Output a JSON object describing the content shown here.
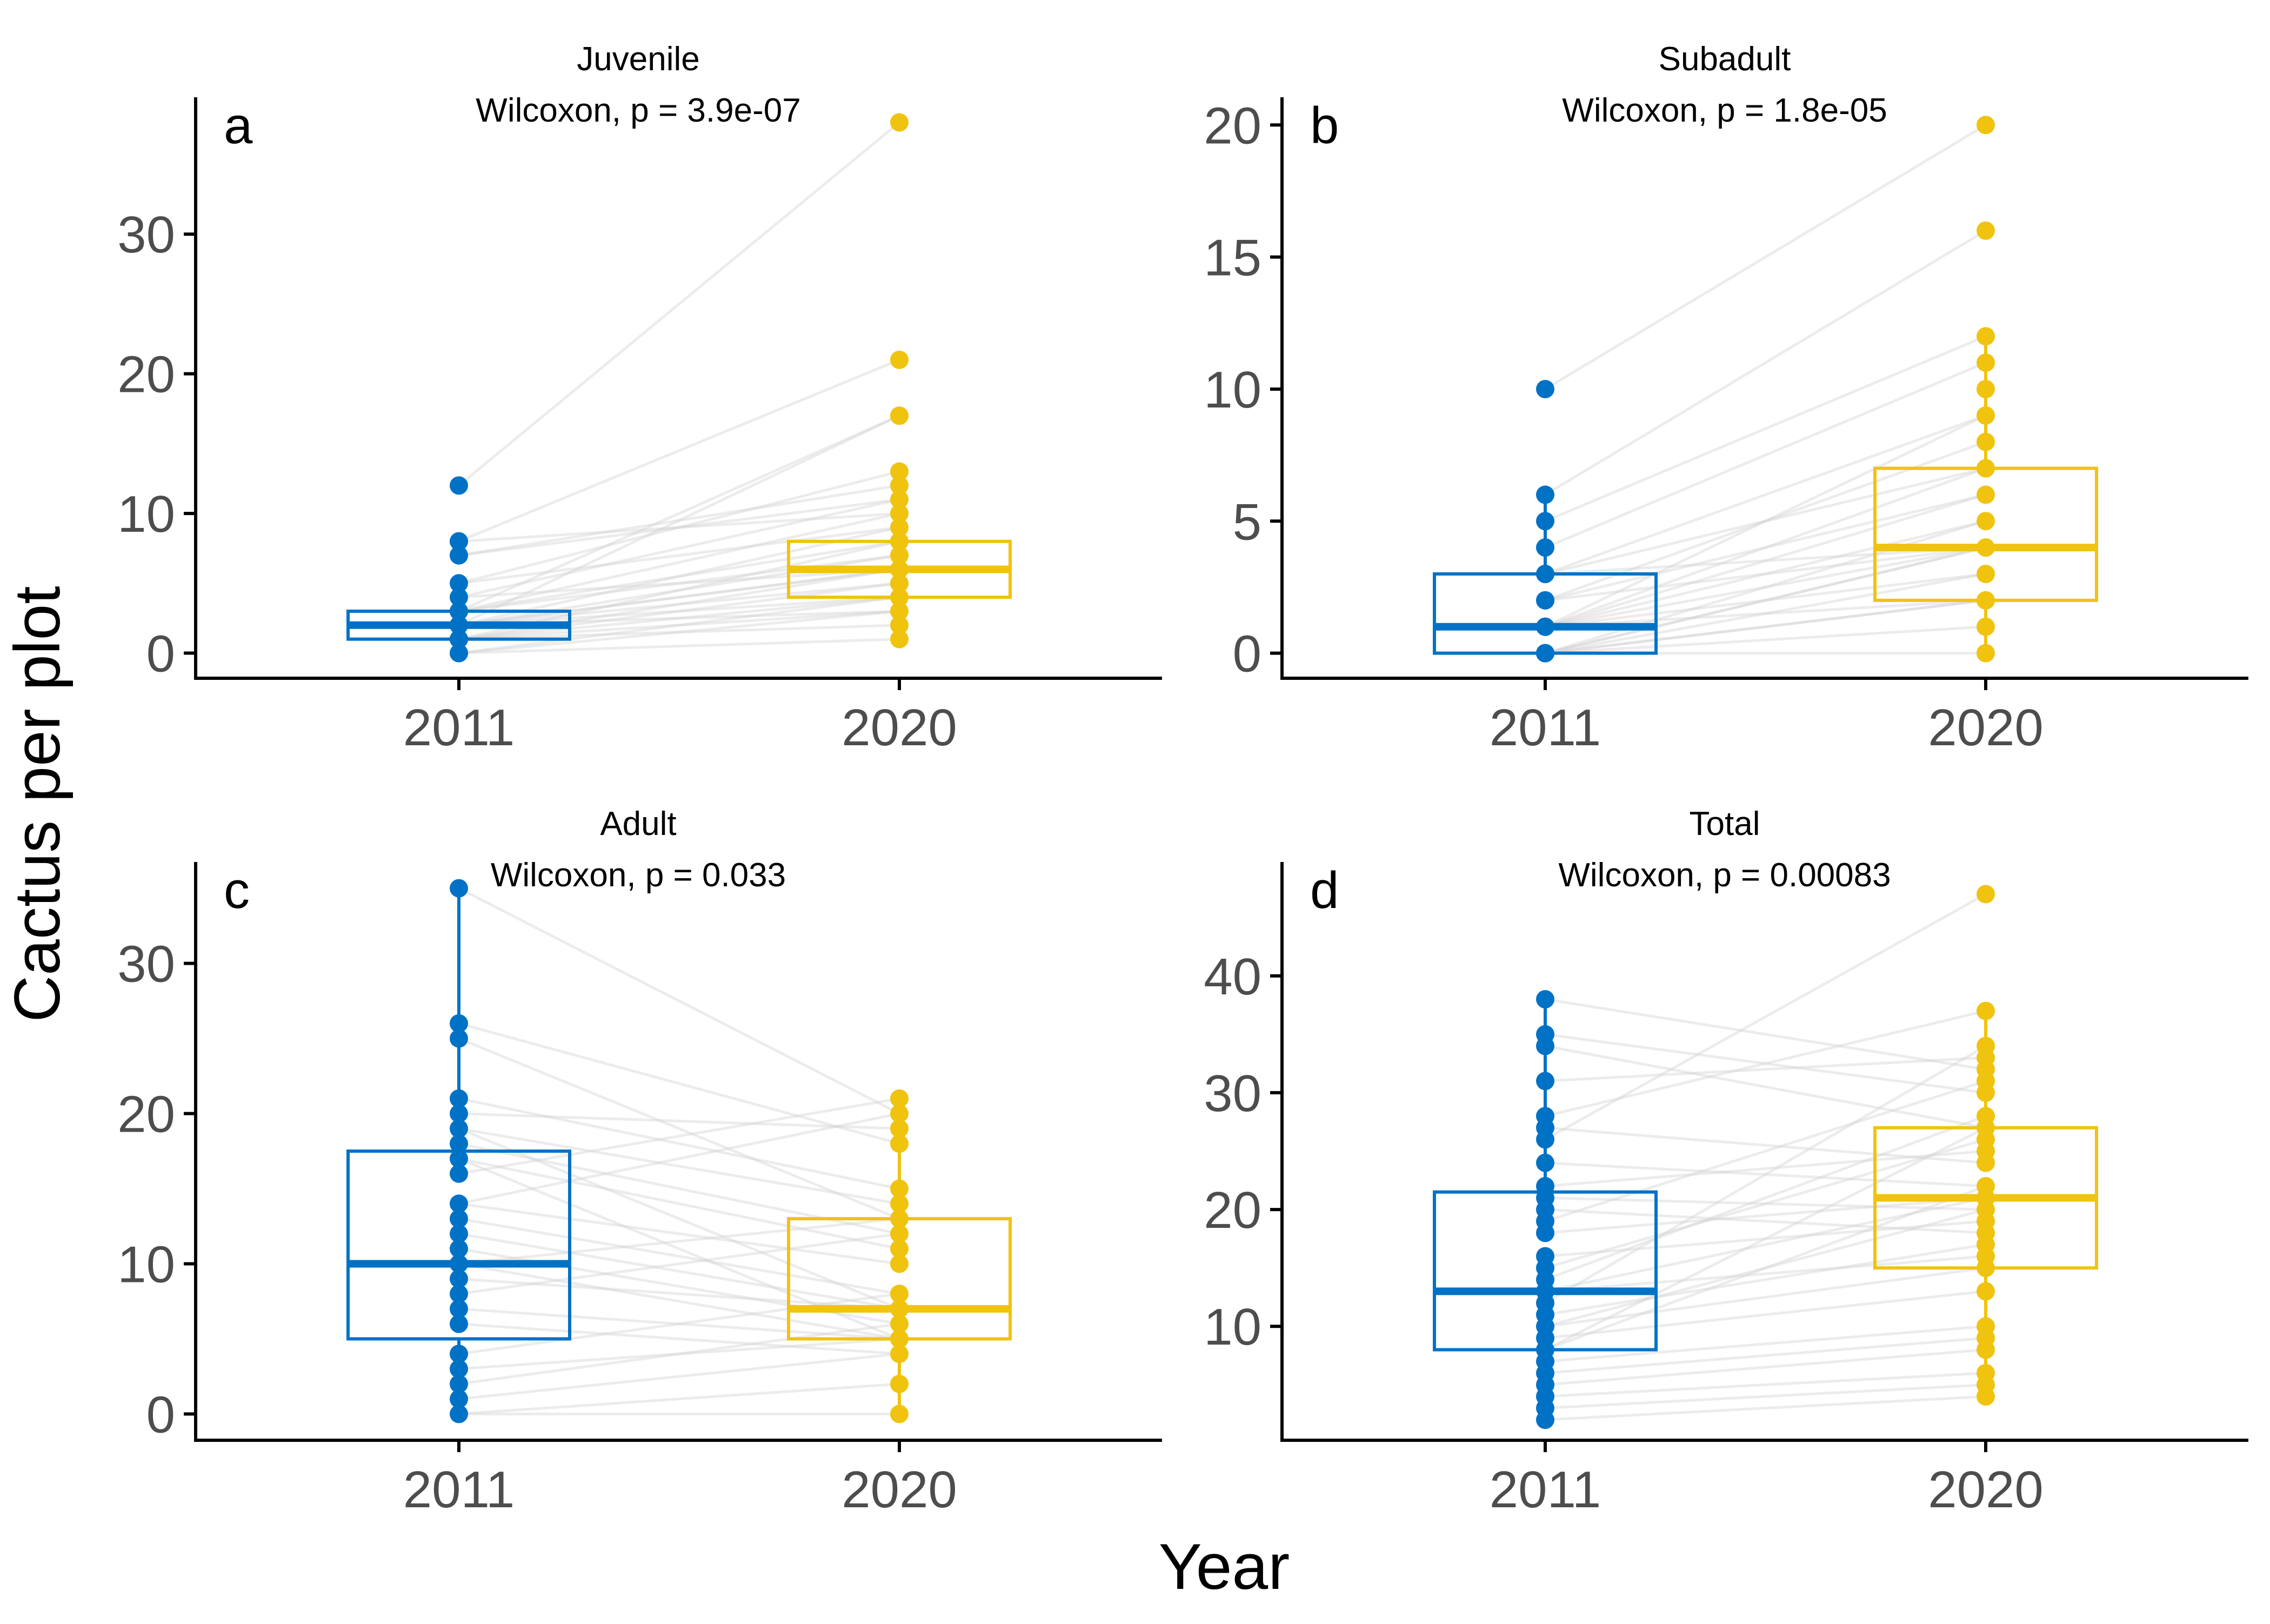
{
  "figure": {
    "xlabel": "Year",
    "ylabel": "Cactus per plot",
    "colors": {
      "2011": "#0072C6",
      "2020": "#F0C30F",
      "pair_line": "#d4d4d4",
      "axis": "#000000"
    }
  },
  "chart_data": [
    {
      "type": "box",
      "panel_letter": "a",
      "title": "Juvenile",
      "annotation": "Wilcoxon, p = 3.9e-07",
      "categories": [
        "2011",
        "2020"
      ],
      "xlabel": "Year",
      "ylabel": "Cactus per plot",
      "ylim": [
        -1.8,
        39.8
      ],
      "yticks": [
        0,
        10,
        20,
        30
      ],
      "boxes": [
        {
          "group": "2011",
          "q1": 1,
          "median": 2,
          "q3": 3,
          "whisker_low": 0,
          "whisker_high": 5
        },
        {
          "group": "2020",
          "q1": 4,
          "median": 6,
          "q3": 8,
          "whisker_low": 1,
          "whisker_high": 13
        }
      ],
      "points": {
        "2011": [
          0,
          0,
          1,
          1,
          1,
          1,
          1,
          2,
          2,
          2,
          2,
          2,
          2,
          2,
          3,
          3,
          3,
          4,
          5,
          7,
          7,
          8,
          8,
          12
        ],
        "2020": [
          1,
          2,
          3,
          4,
          4,
          5,
          5,
          6,
          6,
          6,
          7,
          7,
          8,
          8,
          9,
          10,
          11,
          12,
          13,
          17,
          17,
          21,
          38
        ]
      },
      "pairs": [
        [
          0,
          1
        ],
        [
          0,
          3
        ],
        [
          1,
          4
        ],
        [
          1,
          5
        ],
        [
          1,
          2
        ],
        [
          2,
          6
        ],
        [
          2,
          7
        ],
        [
          2,
          9
        ],
        [
          2,
          3
        ],
        [
          3,
          8
        ],
        [
          3,
          10
        ],
        [
          4,
          11
        ],
        [
          5,
          13
        ],
        [
          7,
          12
        ],
        [
          8,
          21
        ],
        [
          12,
          38
        ],
        [
          1,
          6
        ],
        [
          2,
          5
        ],
        [
          0,
          4
        ],
        [
          3,
          17
        ],
        [
          2,
          17
        ],
        [
          4,
          6
        ],
        [
          1,
          8
        ],
        [
          2,
          4
        ],
        [
          3,
          7
        ],
        [
          1,
          3
        ],
        [
          2,
          6
        ],
        [
          5,
          9
        ],
        [
          7,
          11
        ],
        [
          8,
          10
        ]
      ]
    },
    {
      "type": "box",
      "panel_letter": "b",
      "title": "Subadult",
      "annotation": "Wilcoxon, p = 1.8e-05",
      "categories": [
        "2011",
        "2020"
      ],
      "xlabel": "Year",
      "ylabel": "Cactus per plot",
      "ylim": [
        -0.95,
        21.05
      ],
      "yticks": [
        0,
        5,
        10,
        15,
        20
      ],
      "boxes": [
        {
          "group": "2011",
          "q1": 0,
          "median": 1,
          "q3": 3,
          "whisker_low": 0,
          "whisker_high": 6
        },
        {
          "group": "2020",
          "q1": 2,
          "median": 4,
          "q3": 7,
          "whisker_low": 0,
          "whisker_high": 12
        }
      ],
      "points": {
        "2011": [
          0,
          0,
          0,
          0,
          0,
          1,
          1,
          1,
          1,
          1,
          2,
          2,
          3,
          3,
          4,
          5,
          6,
          10
        ],
        "2020": [
          0,
          1,
          2,
          2,
          3,
          4,
          4,
          5,
          6,
          7,
          7,
          8,
          9,
          10,
          11,
          12,
          16,
          20
        ]
      },
      "pairs": [
        [
          0,
          0
        ],
        [
          0,
          1
        ],
        [
          0,
          2
        ],
        [
          0,
          3
        ],
        [
          0,
          4
        ],
        [
          1,
          2
        ],
        [
          1,
          4
        ],
        [
          1,
          5
        ],
        [
          1,
          6
        ],
        [
          1,
          7
        ],
        [
          2,
          4
        ],
        [
          2,
          8
        ],
        [
          3,
          7
        ],
        [
          3,
          9
        ],
        [
          4,
          11
        ],
        [
          5,
          12
        ],
        [
          6,
          16
        ],
        [
          10,
          20
        ],
        [
          0,
          5
        ],
        [
          1,
          3
        ],
        [
          2,
          6
        ],
        [
          3,
          4
        ],
        [
          0,
          2
        ],
        [
          1,
          9
        ],
        [
          0,
          4
        ]
      ]
    },
    {
      "type": "box",
      "panel_letter": "c",
      "title": "Adult",
      "annotation": "Wilcoxon, p = 0.033",
      "categories": [
        "2011",
        "2020"
      ],
      "xlabel": "Year",
      "ylabel": "Cactus per plot",
      "ylim": [
        -1.75,
        36.75
      ],
      "yticks": [
        0,
        10,
        20,
        30
      ],
      "boxes": [
        {
          "group": "2011",
          "q1": 5,
          "median": 10,
          "q3": 17.5,
          "whisker_low": 0,
          "whisker_high": 35
        },
        {
          "group": "2020",
          "q1": 5,
          "median": 7,
          "q3": 13,
          "whisker_low": 0,
          "whisker_high": 21
        }
      ],
      "points": {
        "2011": [
          0,
          1,
          2,
          3,
          4,
          6,
          7,
          8,
          9,
          10,
          10,
          11,
          12,
          13,
          14,
          16,
          17,
          18,
          19,
          20,
          21,
          25,
          26,
          35
        ],
        "2020": [
          0,
          2,
          4,
          5,
          5,
          6,
          7,
          7,
          8,
          10,
          11,
          12,
          13,
          14,
          15,
          18,
          19,
          20,
          21
        ]
      },
      "pairs": [
        [
          35,
          20
        ],
        [
          26,
          18
        ],
        [
          25,
          13
        ],
        [
          21,
          15
        ],
        [
          20,
          19
        ],
        [
          19,
          14
        ],
        [
          18,
          12
        ],
        [
          17,
          11
        ],
        [
          16,
          21
        ],
        [
          14,
          10
        ],
        [
          13,
          8
        ],
        [
          12,
          7
        ],
        [
          11,
          6
        ],
        [
          10,
          5
        ],
        [
          10,
          13
        ],
        [
          9,
          7
        ],
        [
          8,
          12
        ],
        [
          7,
          5
        ],
        [
          6,
          4
        ],
        [
          4,
          8
        ],
        [
          3,
          5
        ],
        [
          2,
          6
        ],
        [
          1,
          4
        ],
        [
          0,
          2
        ],
        [
          0,
          0
        ],
        [
          19,
          7
        ],
        [
          17,
          5
        ],
        [
          14,
          20
        ]
      ]
    },
    {
      "type": "box",
      "panel_letter": "d",
      "title": "Total",
      "annotation": "Wilcoxon, p = 0.00083",
      "categories": [
        "2011",
        "2020"
      ],
      "xlabel": "Year",
      "ylabel": "Cactus per plot",
      "ylim": [
        0.25,
        49.75
      ],
      "yticks": [
        10,
        20,
        30,
        40
      ],
      "boxes": [
        {
          "group": "2011",
          "q1": 8,
          "median": 13,
          "q3": 21.5,
          "whisker_low": 2,
          "whisker_high": 38
        },
        {
          "group": "2020",
          "q1": 15,
          "median": 21,
          "q3": 27,
          "whisker_low": 4,
          "whisker_high": 37
        }
      ],
      "points": {
        "2011": [
          2,
          3,
          4,
          5,
          6,
          7,
          8,
          9,
          10,
          11,
          12,
          13,
          13,
          14,
          15,
          16,
          18,
          19,
          20,
          21,
          22,
          24,
          26,
          27,
          28,
          31,
          34,
          35,
          38
        ],
        "2020": [
          4,
          5,
          6,
          8,
          9,
          10,
          13,
          15,
          16,
          17,
          18,
          19,
          20,
          21,
          21,
          22,
          24,
          25,
          26,
          27,
          28,
          30,
          31,
          32,
          33,
          34,
          37,
          47
        ]
      },
      "pairs": [
        [
          38,
          32
        ],
        [
          35,
          30
        ],
        [
          34,
          27
        ],
        [
          31,
          33
        ],
        [
          28,
          37
        ],
        [
          27,
          24
        ],
        [
          26,
          47
        ],
        [
          24,
          22
        ],
        [
          22,
          25
        ],
        [
          21,
          20
        ],
        [
          20,
          18
        ],
        [
          19,
          31
        ],
        [
          18,
          21
        ],
        [
          16,
          19
        ],
        [
          15,
          26
        ],
        [
          14,
          28
        ],
        [
          13,
          16
        ],
        [
          13,
          21
        ],
        [
          12,
          34
        ],
        [
          11,
          17
        ],
        [
          10,
          15
        ],
        [
          9,
          13
        ],
        [
          8,
          22
        ],
        [
          7,
          10
        ],
        [
          6,
          9
        ],
        [
          5,
          8
        ],
        [
          4,
          6
        ],
        [
          3,
          5
        ],
        [
          2,
          4
        ],
        [
          10,
          20
        ],
        [
          8,
          27
        ]
      ]
    }
  ]
}
